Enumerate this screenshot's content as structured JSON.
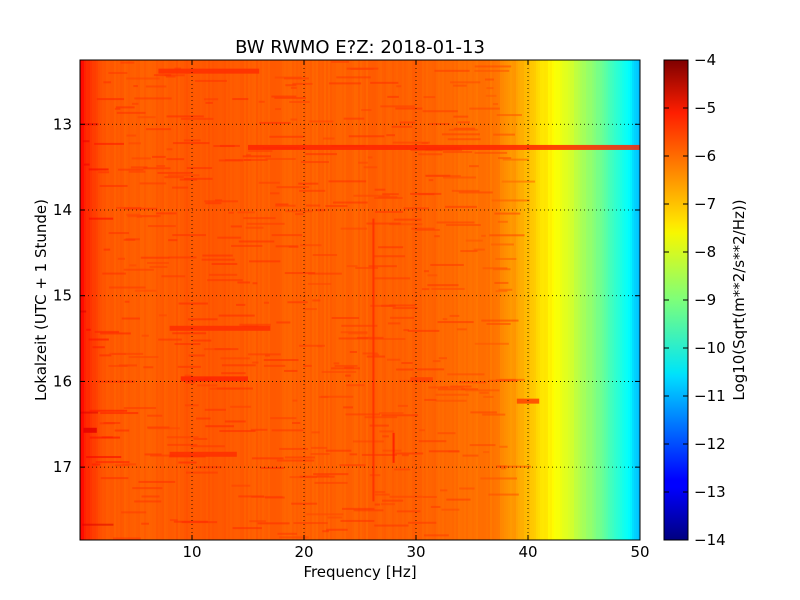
{
  "chart_data": {
    "type": "heatmap",
    "title": "BW RWMO E?Z: 2018-01-13",
    "xlabel": "Frequency [Hz]",
    "ylabel": "Lokalzeit (UTC + 1 Stunde)",
    "xlim": [
      0,
      50
    ],
    "ylim": [
      12.25,
      17.85
    ],
    "x_ticks": [
      10,
      20,
      30,
      40,
      50
    ],
    "y_ticks": [
      13,
      14,
      15,
      16,
      17
    ],
    "grid": true,
    "colorbar": {
      "label": "Log10(Sqrt(m**2/s**2/Hz))",
      "range": [
        -14,
        -4
      ],
      "ticks": [
        -4,
        -5,
        -6,
        -7,
        -8,
        -9,
        -10,
        -11,
        -12,
        -13,
        -14
      ],
      "colormap": "jet"
    },
    "spectral_profile": {
      "frequency_hz": [
        0,
        0.5,
        2,
        5,
        10,
        20,
        30,
        37,
        39,
        41,
        43,
        45,
        47,
        49,
        50
      ],
      "level": [
        -5.2,
        -5.6,
        -6.1,
        -6.2,
        -6.1,
        -6.2,
        -6.2,
        -6.4,
        -6.8,
        -7.4,
        -7.9,
        -8.6,
        -9.4,
        -10.3,
        -11.0
      ]
    },
    "features": [
      {
        "type": "band",
        "hour": 13.27,
        "freq_from": 15,
        "freq_to": 50,
        "level": -5.6
      },
      {
        "type": "band",
        "hour": 12.38,
        "freq_from": 7,
        "freq_to": 16,
        "level": -5.7
      },
      {
        "type": "band",
        "hour": 15.38,
        "freq_from": 8,
        "freq_to": 17,
        "level": -5.7
      },
      {
        "type": "band",
        "hour": 15.97,
        "freq_from": 9,
        "freq_to": 15,
        "level": -5.6
      },
      {
        "type": "band",
        "hour": 16.85,
        "freq_from": 8,
        "freq_to": 14,
        "level": -5.7
      },
      {
        "type": "band",
        "hour": 16.57,
        "freq_from": 0.3,
        "freq_to": 1.5,
        "level": -5.0
      },
      {
        "type": "band",
        "hour": 16.23,
        "freq_from": 39,
        "freq_to": 41,
        "level": -5.9
      },
      {
        "type": "band",
        "hour": 15.98,
        "freq_from": 29.5,
        "freq_to": 31.5,
        "level": -5.9
      },
      {
        "type": "line",
        "freq": 26.2,
        "hour_from": 14.1,
        "hour_to": 17.4,
        "level": -5.7
      },
      {
        "type": "line",
        "freq": 28.0,
        "hour_from": 16.6,
        "hour_to": 16.95,
        "level": -5.5
      }
    ]
  }
}
